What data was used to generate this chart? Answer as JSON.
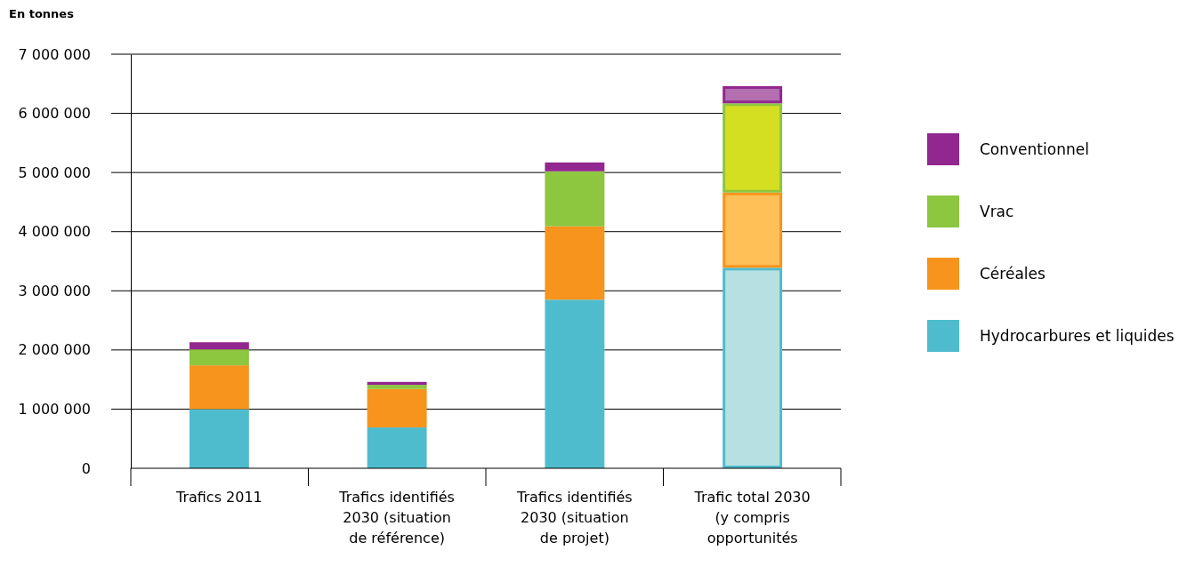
{
  "chart_data": {
    "type": "bar",
    "stacked": true,
    "ylabel": "En tonnes",
    "categories": [
      "Trafics 2011",
      "Trafics identifiés 2030 (situation de référence)",
      "Trafics identifiés 2030 (situation de projet)",
      "Trafic total 2030 (y compris opportunités"
    ],
    "series": [
      {
        "name": "Hydrocarbures et liquides",
        "color": "#4fbcce",
        "colors": [
          "#4fbcce",
          "#4fbcce",
          "#4fbcce",
          "#b7e0e3"
        ],
        "values": [
          1000000,
          690000,
          2850000,
          3390000
        ]
      },
      {
        "name": "Céréales",
        "color": "#f7941d",
        "colors": [
          "#f7941d",
          "#f7941d",
          "#f7941d",
          "#fec057"
        ],
        "values": [
          740000,
          650000,
          1240000,
          1270000
        ]
      },
      {
        "name": "Vrac",
        "color": "#8dc63f",
        "colors": [
          "#8dc63f",
          "#8dc63f",
          "#8dc63f",
          "#d4df21"
        ],
        "values": [
          270000,
          70000,
          930000,
          1510000
        ]
      },
      {
        "name": "Conventionnel",
        "color": "#92278f",
        "colors": [
          "#92278f",
          "#92278f",
          "#92278f",
          "#b36fb0"
        ],
        "values": [
          120000,
          50000,
          150000,
          290000
        ]
      }
    ],
    "ylim": [
      0,
      7000000
    ],
    "yticks": [
      {
        "value": 0,
        "label": "0"
      },
      {
        "value": 1000000,
        "label": "1 000 000"
      },
      {
        "value": 2000000,
        "label": "2 000 000"
      },
      {
        "value": 3000000,
        "label": "3 000 000"
      },
      {
        "value": 4000000,
        "label": "4 000 000"
      },
      {
        "value": 5000000,
        "label": "5 000 000"
      },
      {
        "value": 6000000,
        "label": "6 000 000"
      },
      {
        "value": 7000000,
        "label": "7 000 000"
      }
    ],
    "grid": "y",
    "legend": "right"
  }
}
